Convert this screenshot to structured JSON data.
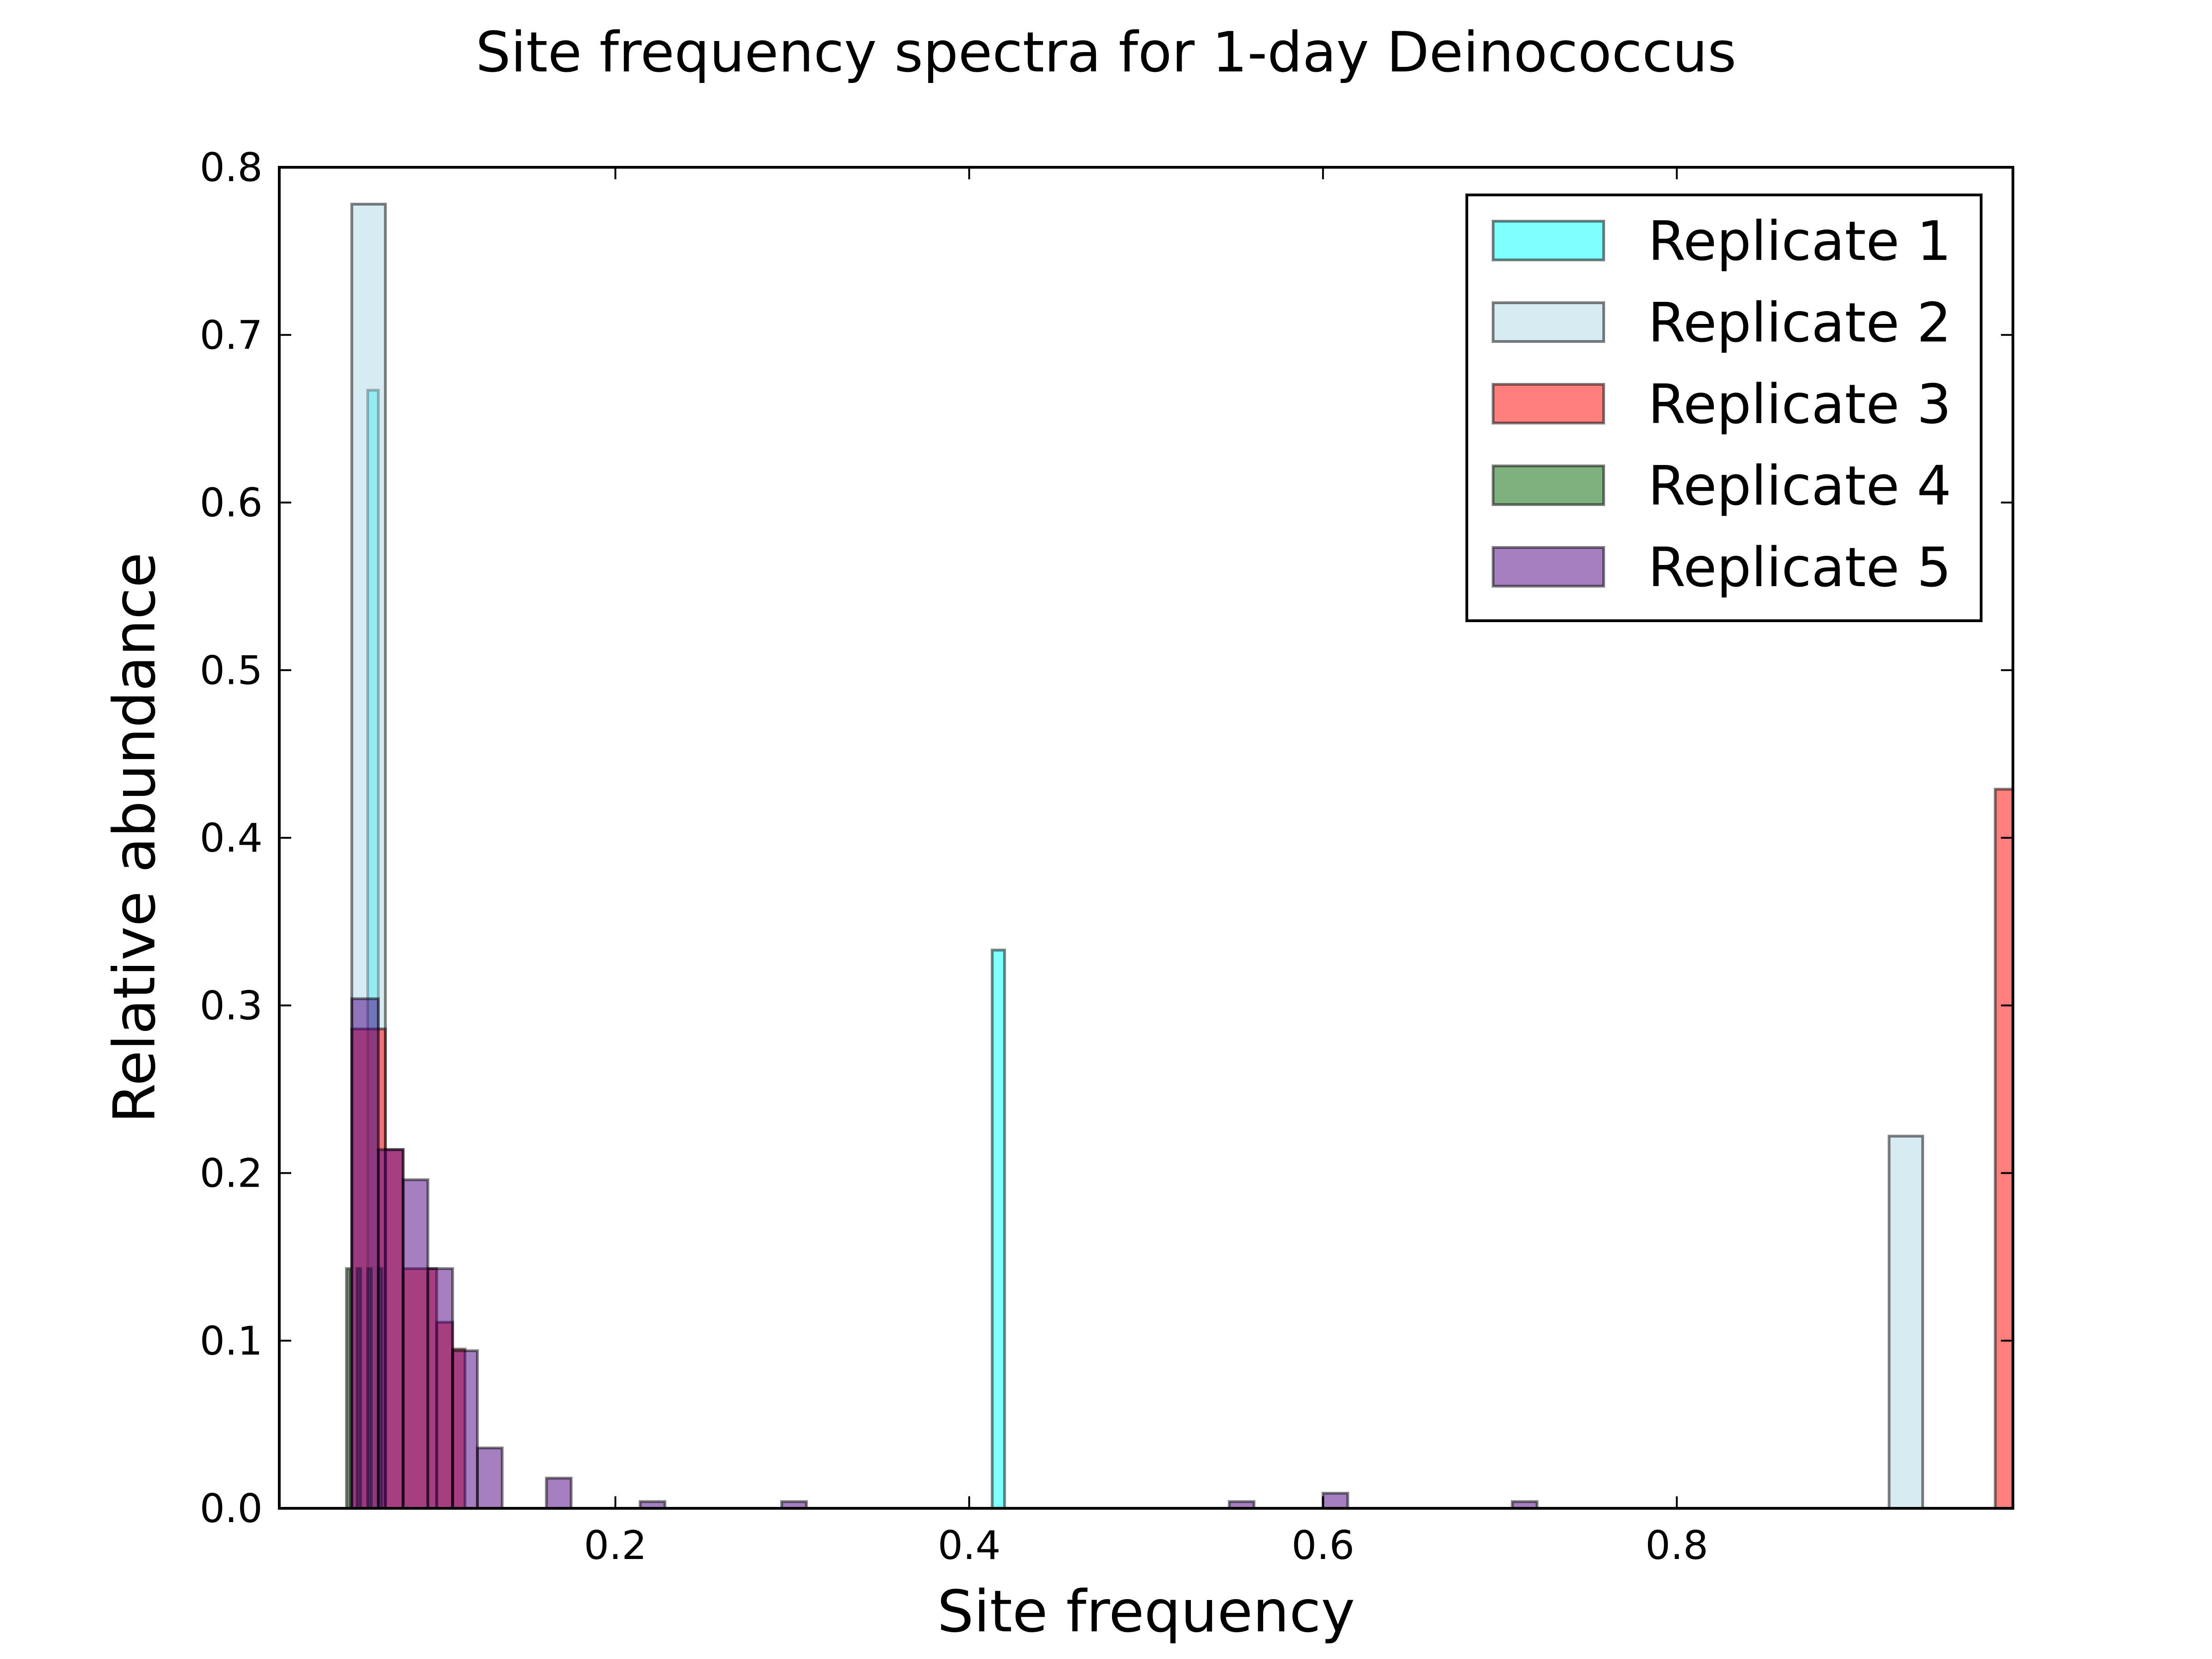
{
  "chart_data": {
    "type": "bar",
    "title": "Site frequency spectra for 1-day Deinococcus",
    "xlabel": "Site frequency",
    "ylabel": "Relative abundance",
    "xlim": [
      0.01,
      0.99
    ],
    "ylim": [
      0.0,
      0.8
    ],
    "xticks": [
      0.2,
      0.4,
      0.6,
      0.8
    ],
    "xtick_labels": [
      "0.2",
      "0.4",
      "0.6",
      "0.8"
    ],
    "yticks": [
      0.0,
      0.1,
      0.2,
      0.3,
      0.4,
      0.5,
      0.6,
      0.7,
      0.8
    ],
    "ytick_labels": [
      "0.0",
      "0.1",
      "0.2",
      "0.3",
      "0.4",
      "0.5",
      "0.6",
      "0.7",
      "0.8"
    ],
    "grid": false,
    "legend_position": "top-right",
    "series": [
      {
        "name": "Replicate 1",
        "color": "#00ffff",
        "bins": [
          {
            "x0": 0.06,
            "x1": 0.066,
            "y": 0.667
          },
          {
            "x0": 0.413,
            "x1": 0.42,
            "y": 0.333
          }
        ]
      },
      {
        "name": "Replicate 2",
        "color": "#add8e6",
        "bins": [
          {
            "x0": 0.051,
            "x1": 0.07,
            "y": 0.778
          },
          {
            "x0": 0.92,
            "x1": 0.939,
            "y": 0.222
          }
        ]
      },
      {
        "name": "Replicate 3",
        "color": "#ff0000",
        "bins": [
          {
            "x0": 0.051,
            "x1": 0.07,
            "y": 0.286
          },
          {
            "x0": 0.07,
            "x1": 0.08,
            "y": 0.214
          },
          {
            "x0": 0.08,
            "x1": 0.099,
            "y": 0.143
          },
          {
            "x0": 0.099,
            "x1": 0.108,
            "y": 0.111
          },
          {
            "x0": 0.108,
            "x1": 0.115,
            "y": 0.095
          },
          {
            "x0": 0.98,
            "x1": 0.99,
            "y": 0.429
          }
        ]
      },
      {
        "name": "Replicate 4",
        "color": "#006400",
        "bins": [
          {
            "x0": 0.048,
            "x1": 0.05,
            "y": 0.143
          },
          {
            "x0": 0.054,
            "x1": 0.056,
            "y": 0.143
          },
          {
            "x0": 0.06,
            "x1": 0.062,
            "y": 0.143
          },
          {
            "x0": 0.066,
            "x1": 0.068,
            "y": 0.143
          }
        ]
      },
      {
        "name": "Replicate 5",
        "color": "#4b0082",
        "bins": [
          {
            "x0": 0.051,
            "x1": 0.066,
            "y": 0.304
          },
          {
            "x0": 0.066,
            "x1": 0.08,
            "y": 0.214
          },
          {
            "x0": 0.08,
            "x1": 0.094,
            "y": 0.196
          },
          {
            "x0": 0.094,
            "x1": 0.108,
            "y": 0.143
          },
          {
            "x0": 0.108,
            "x1": 0.122,
            "y": 0.094
          },
          {
            "x0": 0.122,
            "x1": 0.136,
            "y": 0.036
          },
          {
            "x0": 0.161,
            "x1": 0.175,
            "y": 0.018
          },
          {
            "x0": 0.214,
            "x1": 0.228,
            "y": 0.004
          },
          {
            "x0": 0.294,
            "x1": 0.308,
            "y": 0.004
          },
          {
            "x0": 0.547,
            "x1": 0.561,
            "y": 0.004
          },
          {
            "x0": 0.6,
            "x1": 0.614,
            "y": 0.009
          },
          {
            "x0": 0.707,
            "x1": 0.721,
            "y": 0.004
          }
        ]
      }
    ]
  }
}
